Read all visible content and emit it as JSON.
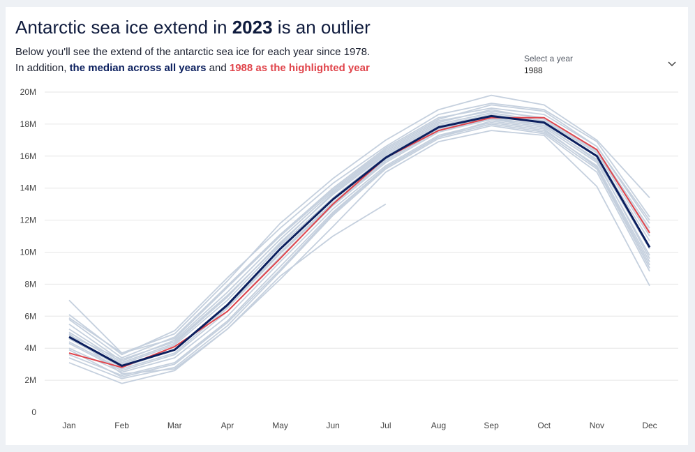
{
  "title": {
    "prefix": "Antarctic sea ice extend in ",
    "highlight": "2023",
    "suffix": " is an outlier"
  },
  "subtitle": {
    "line1": "Below you'll see the extend of the antarctic sea ice for each year since 1978.",
    "line2_prefix": "In addition, ",
    "line2_median": "the median across all years",
    "line2_and": " and ",
    "line2_year": "1988 as the highlighted year"
  },
  "selector": {
    "label": "Select a year",
    "value": "1988"
  },
  "colors": {
    "median": "#0b1f5e",
    "highlight": "#e0444b",
    "years": "#c5d0de",
    "grid": "#e6e6e6"
  },
  "chart_data": {
    "type": "line",
    "categories": [
      "Jan",
      "Feb",
      "Mar",
      "Apr",
      "May",
      "Jun",
      "Jul",
      "Aug",
      "Sep",
      "Oct",
      "Nov",
      "Dec"
    ],
    "y_ticks": [
      "0",
      "2M",
      "4M",
      "6M",
      "8M",
      "10M",
      "12M",
      "14M",
      "16M",
      "18M",
      "20M"
    ],
    "ylim": [
      0,
      20
    ],
    "y_unit": "million km²",
    "grid": true,
    "median": [
      4.7,
      2.9,
      3.9,
      6.7,
      10.2,
      13.3,
      15.9,
      17.8,
      18.5,
      18.1,
      16.0,
      10.3
    ],
    "highlight": {
      "name": "1988",
      "values": [
        3.7,
        2.8,
        4.1,
        6.3,
        9.6,
        13.0,
        15.9,
        17.6,
        18.4,
        18.4,
        16.4,
        11.2
      ]
    },
    "years": [
      [
        7.0,
        3.7,
        4.9,
        8.2,
        11.8,
        14.6,
        17.0,
        18.9,
        19.8,
        19.2,
        17.0,
        13.4
      ],
      [
        6.1,
        3.6,
        5.1,
        8.4,
        11.5,
        14.3,
        16.6,
        18.6,
        19.3,
        18.9,
        16.9,
        12.2
      ],
      [
        5.8,
        3.4,
        4.7,
        7.9,
        11.1,
        14.0,
        16.5,
        18.4,
        19.0,
        18.6,
        16.6,
        11.8
      ],
      [
        5.5,
        3.2,
        4.5,
        7.5,
        10.8,
        13.8,
        16.3,
        18.2,
        18.8,
        18.4,
        16.4,
        11.5
      ],
      [
        5.2,
        3.1,
        4.3,
        7.2,
        10.6,
        13.6,
        16.1,
        18.0,
        18.7,
        18.2,
        16.2,
        11.0
      ],
      [
        5.0,
        3.0,
        4.2,
        7.0,
        10.4,
        13.4,
        16.0,
        17.9,
        18.6,
        18.1,
        16.0,
        10.7
      ],
      [
        4.6,
        2.8,
        3.9,
        6.6,
        10.0,
        13.1,
        15.8,
        17.7,
        18.4,
        17.9,
        15.8,
        10.2
      ],
      [
        4.3,
        2.6,
        3.6,
        6.3,
        9.7,
        12.9,
        15.6,
        17.5,
        18.3,
        17.8,
        15.6,
        9.8
      ],
      [
        4.0,
        2.5,
        3.4,
        6.0,
        9.4,
        12.7,
        15.4,
        17.3,
        18.1,
        17.6,
        15.4,
        9.4
      ],
      [
        3.6,
        2.3,
        3.1,
        5.7,
        9.1,
        12.5,
        15.3,
        17.2,
        18.0,
        17.5,
        15.2,
        9.0
      ],
      [
        3.4,
        2.1,
        2.8,
        5.4,
        8.8,
        12.3,
        15.2,
        17.1,
        17.9,
        17.4,
        15.0,
        8.8
      ],
      [
        3.1,
        1.8,
        2.6,
        5.2,
        8.3,
        11.6,
        15.0,
        16.9,
        17.6,
        17.3,
        14.1,
        7.9
      ],
      [
        5.9,
        3.7,
        4.6,
        7.8,
        11.0,
        13.9,
        16.4,
        18.3,
        19.2,
        18.8,
        16.6,
        12.0
      ],
      [
        4.8,
        3.3,
        4.4,
        7.3,
        10.5,
        13.7,
        16.2,
        18.1,
        18.9,
        18.3,
        16.3,
        11.3
      ],
      [
        4.4,
        2.7,
        3.7,
        6.5,
        9.9,
        13.0,
        15.7,
        17.6,
        18.3,
        18.0,
        15.7,
        9.6
      ],
      [
        3.9,
        2.2,
        3.0,
        5.6,
        8.9,
        12.4,
        15.3,
        17.2,
        18.2,
        17.7,
        15.3,
        9.2
      ],
      [
        4.9,
        2.4,
        2.7,
        5.2,
        8.5,
        11.0,
        13.0
      ]
    ]
  }
}
